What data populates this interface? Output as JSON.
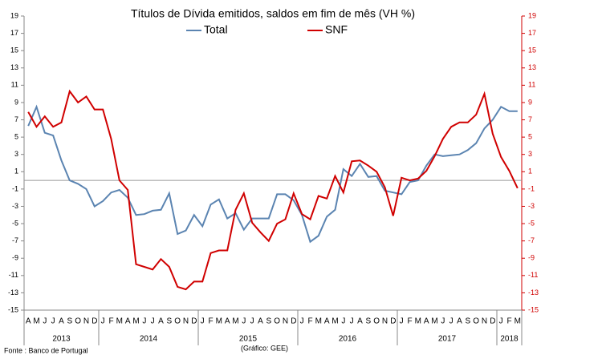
{
  "chart_data": {
    "type": "line",
    "title": "Títulos de Dívida emitidos, saldos em fim de mês  (VH %)",
    "categories": [
      "A",
      "M",
      "J",
      "J",
      "A",
      "S",
      "O",
      "N",
      "D",
      "J",
      "F",
      "M",
      "A",
      "M",
      "J",
      "J",
      "A",
      "S",
      "O",
      "N",
      "D",
      "J",
      "F",
      "M",
      "A",
      "M",
      "J",
      "J",
      "A",
      "S",
      "O",
      "N",
      "D",
      "J",
      "F",
      "M",
      "A",
      "M",
      "J",
      "J",
      "A",
      "S",
      "O",
      "N",
      "D",
      "J",
      "F",
      "M",
      "A",
      "M",
      "J",
      "J",
      "A",
      "S",
      "O",
      "N",
      "D",
      "J",
      "F",
      "M"
    ],
    "x_groups": [
      {
        "label": "2013",
        "count": 9
      },
      {
        "label": "2014",
        "count": 12
      },
      {
        "label": "2015",
        "count": 12
      },
      {
        "label": "2016",
        "count": 12
      },
      {
        "label": "2017",
        "count": 12
      },
      {
        "label": "2018",
        "count": 3
      }
    ],
    "series": [
      {
        "name": "Total",
        "color": "#5b84b1",
        "values": [
          6.3,
          8.5,
          5.5,
          5.2,
          2.3,
          0.0,
          -0.4,
          -1.0,
          -3.0,
          -2.4,
          -1.4,
          -1.1,
          -2.0,
          -4.0,
          -3.9,
          -3.5,
          -3.4,
          -1.5,
          -6.2,
          -5.8,
          -4.0,
          -5.3,
          -2.8,
          -2.2,
          -4.4,
          -3.8,
          -5.7,
          -4.4,
          -4.4,
          -4.4,
          -1.6,
          -1.6,
          -2.3,
          -4.0,
          -7.1,
          -6.4,
          -4.2,
          -3.4,
          1.3,
          0.5,
          1.9,
          0.4,
          0.5,
          -1.2,
          -1.4,
          -1.6,
          -0.2,
          0.0,
          1.7,
          3.0,
          2.8,
          2.9,
          3.0,
          3.5,
          4.3,
          6.0,
          7.0,
          8.5,
          8.0,
          8.0
        ]
      },
      {
        "name": "SNF",
        "color": "#d00000",
        "axis": "y2",
        "values": [
          7.9,
          6.2,
          7.4,
          6.2,
          6.7,
          10.3,
          9.0,
          9.7,
          8.2,
          8.2,
          4.8,
          0.0,
          -1.1,
          -9.7,
          -10.0,
          -10.3,
          -9.1,
          -10.0,
          -12.3,
          -12.6,
          -11.7,
          -11.7,
          -8.4,
          -8.1,
          -8.1,
          -3.4,
          -1.5,
          -4.9,
          -6.0,
          -7.0,
          -5.0,
          -4.5,
          -1.5,
          -3.9,
          -4.5,
          -1.8,
          -2.1,
          0.5,
          -1.4,
          2.2,
          2.3,
          1.7,
          1.0,
          -0.8,
          -4.1,
          0.3,
          0.0,
          0.2,
          1.1,
          2.8,
          4.8,
          6.2,
          6.7,
          6.7,
          7.6,
          10.0,
          5.4,
          2.7,
          1.1,
          -0.9
        ]
      }
    ],
    "ylim": [
      -15,
      19
    ],
    "yticks": [
      -15,
      -13,
      -11,
      -9,
      -7,
      -5,
      -3,
      -1,
      1,
      3,
      5,
      7,
      9,
      11,
      13,
      15,
      17,
      19
    ],
    "y2lim": [
      -15,
      19
    ],
    "y2ticks": [
      -15,
      -13,
      -11,
      -9,
      -7,
      -5,
      -3,
      -1,
      1,
      3,
      5,
      7,
      9,
      11,
      13,
      15,
      17,
      19
    ]
  },
  "footer": {
    "source": "Fonte : Banco de Portugal",
    "credit": "(Gráfico: GEE)"
  }
}
